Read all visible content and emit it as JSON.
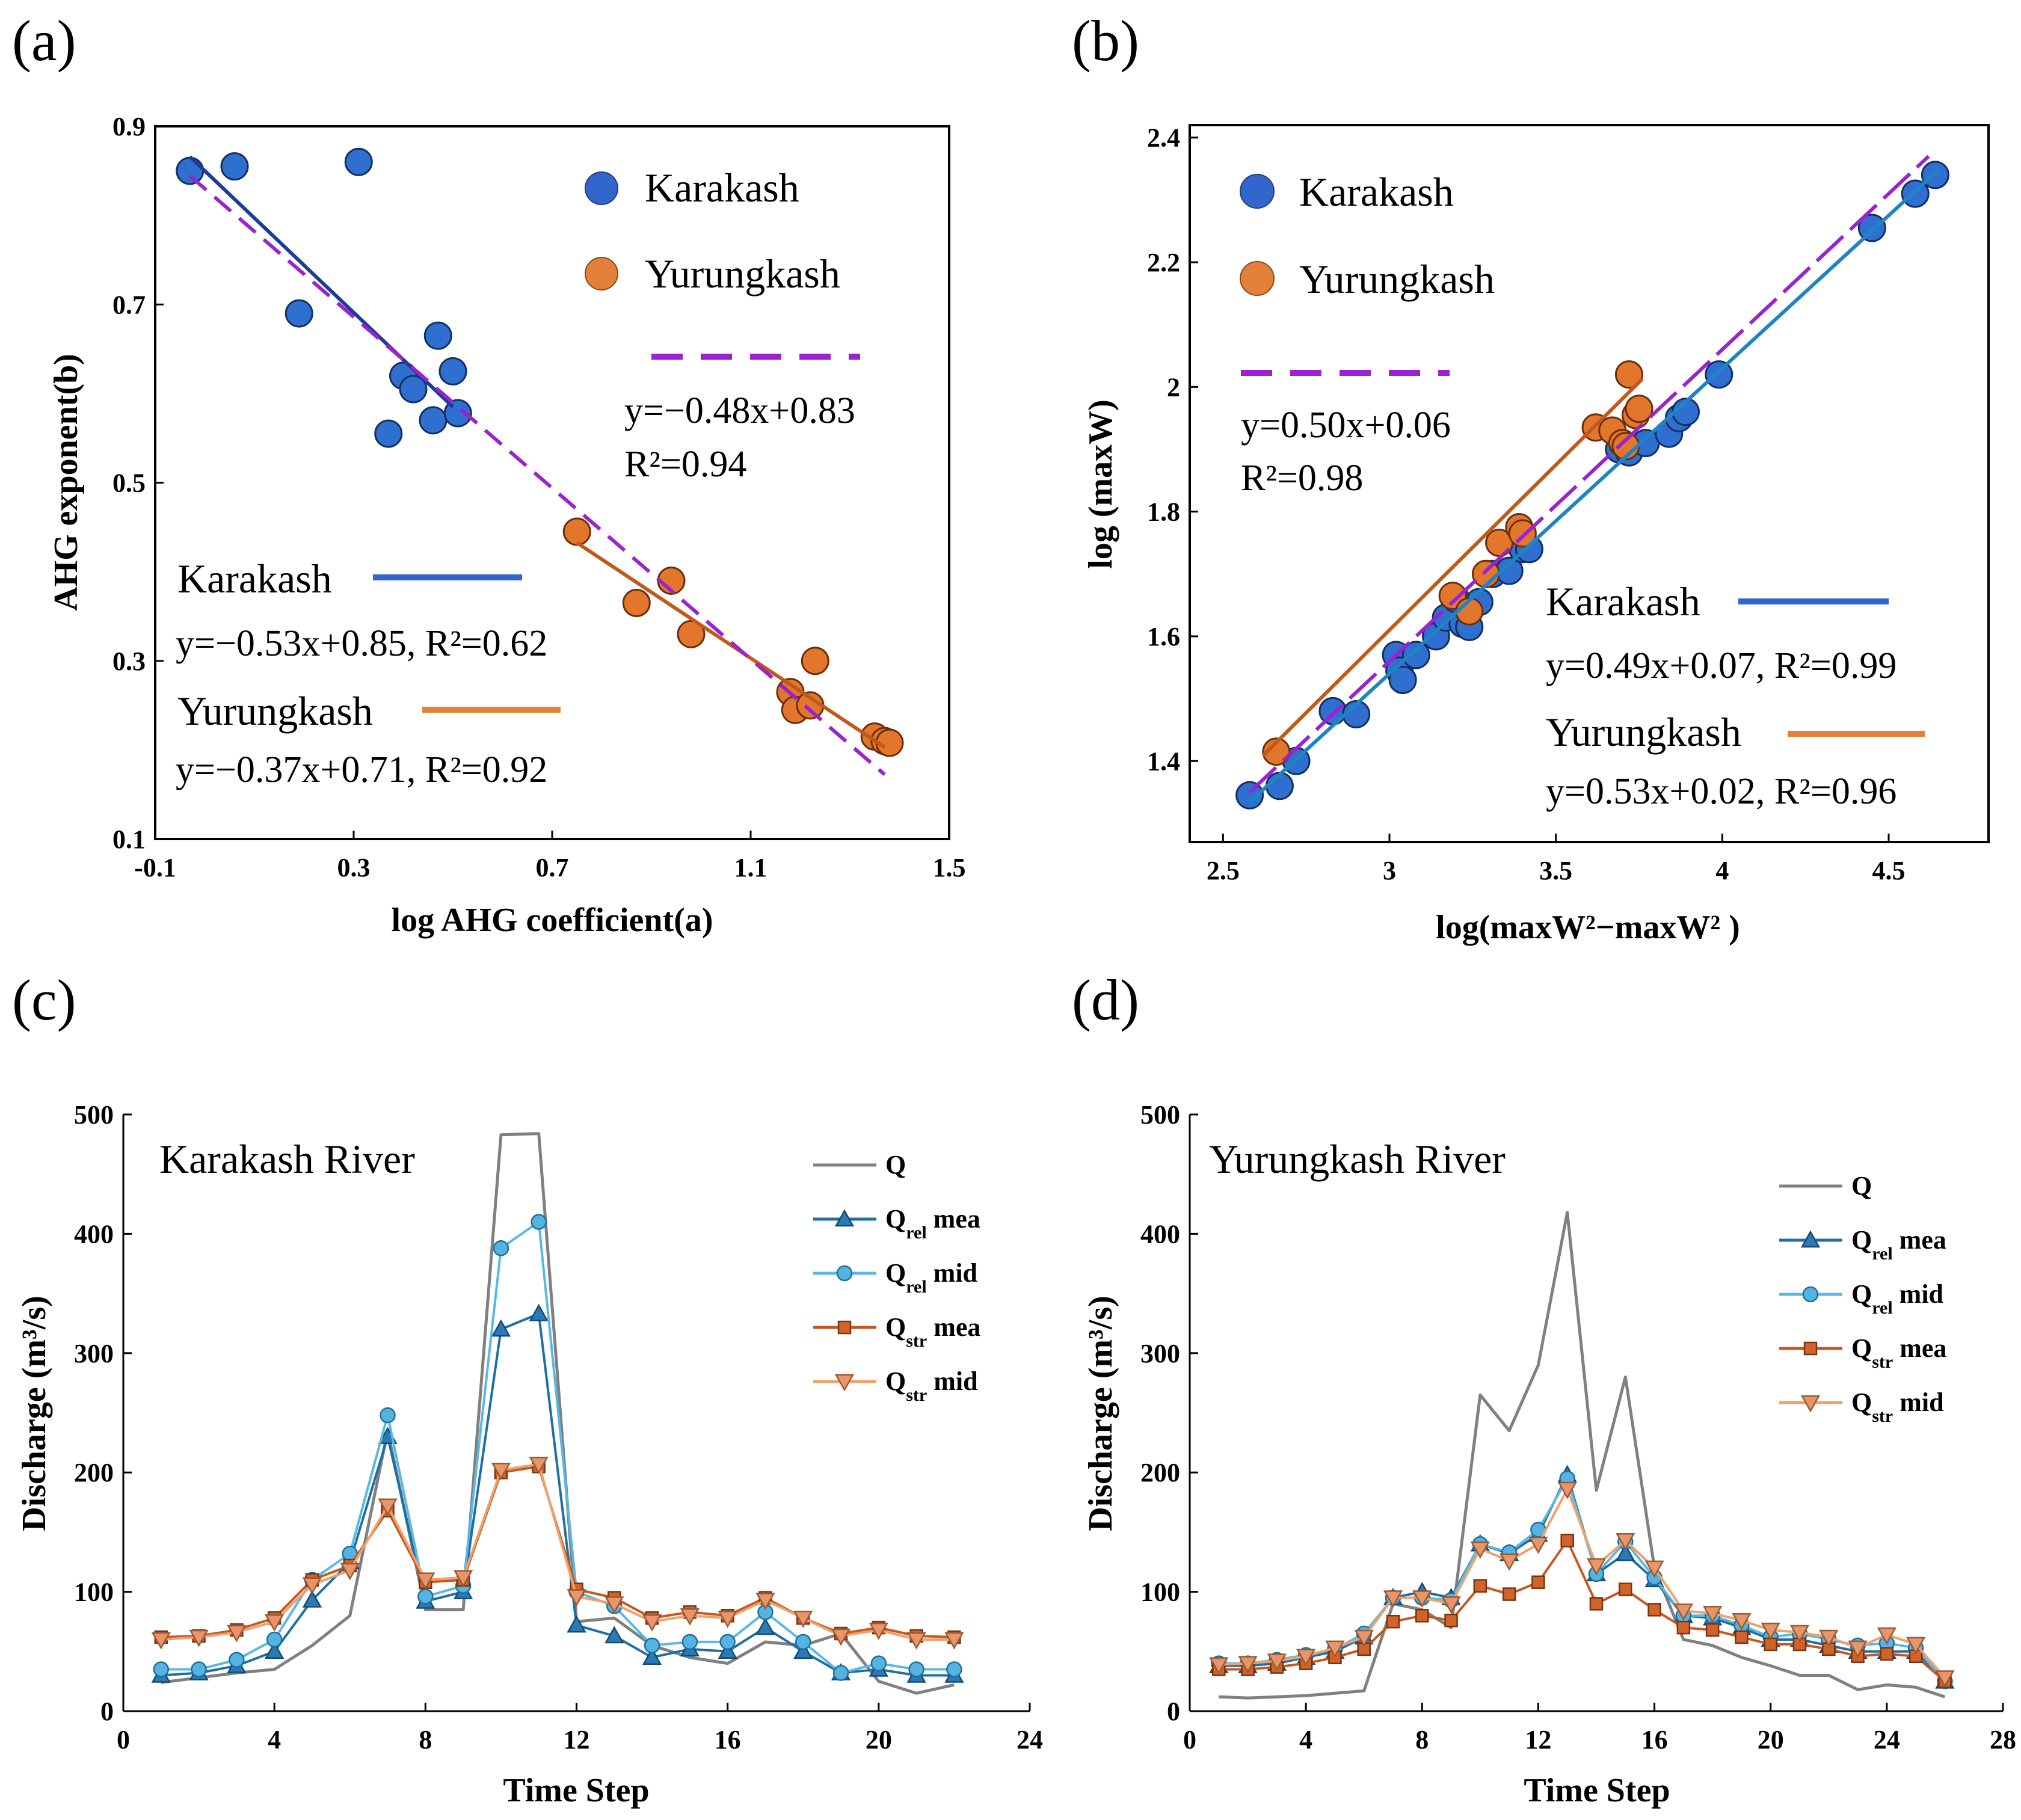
{
  "colors": {
    "karakash_dot": "#2f6fd0",
    "karakash_fit_a": "#1e3a9a",
    "karakash_fit_b": "#1f84c4",
    "yurungkash_dot": "#e2762c",
    "yurungkash_fit": "#c1581c",
    "pooled_fit": "#9a22cf",
    "legend_blue": "#3366cc",
    "legend_orange": "#e38039",
    "q": "#808080",
    "rel_mea": "#1f6fa6",
    "rel_mid": "#5ab8e4",
    "str_mea": "#c8561f",
    "str_mid": "#f0a06a"
  },
  "chart_data": [
    {
      "panel": "(a)",
      "type": "scatter",
      "xlabel": "log AHG coefficient(a)",
      "ylabel": "AHG exponent(b)",
      "xlim": [
        -0.1,
        1.5
      ],
      "ylim": [
        0.1,
        0.9
      ],
      "xticks": [
        "-0.1",
        "0.3",
        "0.7",
        "1.1",
        "1.5"
      ],
      "yticks": [
        "0.1",
        "0.3",
        "0.5",
        "0.7",
        "0.9"
      ],
      "legend": [
        "Karakash",
        "Yurungkash"
      ],
      "pooled": {
        "eq": "y=−0.48x+0.83",
        "r2": "R²=0.94",
        "slope": -0.48,
        "intercept": 0.83,
        "x_range": [
          -0.03,
          1.37
        ]
      },
      "series": [
        {
          "name": "Karakash",
          "label": "Karakash",
          "eq": "y=−0.53x+0.85, R²=0.62",
          "slope": -0.53,
          "intercept": 0.85,
          "x_range": [
            -0.03,
            0.5
          ],
          "points": [
            [
              -0.03,
              0.85
            ],
            [
              0.06,
              0.855
            ],
            [
              0.31,
              0.86
            ],
            [
              0.19,
              0.69
            ],
            [
              0.4,
              0.62
            ],
            [
              0.42,
              0.605
            ],
            [
              0.37,
              0.555
            ],
            [
              0.46,
              0.57
            ],
            [
              0.47,
              0.665
            ],
            [
              0.5,
              0.625
            ],
            [
              0.51,
              0.578
            ]
          ]
        },
        {
          "name": "Yurungkash",
          "label": "Yurungkash",
          "eq": "y=−0.37x+0.71, R²=0.92",
          "slope": -0.37,
          "intercept": 0.71,
          "x_range": [
            0.75,
            1.37
          ],
          "points": [
            [
              0.75,
              0.445
            ],
            [
              0.87,
              0.365
            ],
            [
              0.94,
              0.39
            ],
            [
              0.98,
              0.33
            ],
            [
              1.18,
              0.265
            ],
            [
              1.19,
              0.245
            ],
            [
              1.22,
              0.25
            ],
            [
              1.23,
              0.3
            ],
            [
              1.35,
              0.215
            ],
            [
              1.37,
              0.21
            ],
            [
              1.38,
              0.208
            ]
          ]
        }
      ]
    },
    {
      "panel": "(b)",
      "type": "scatter",
      "xlabel": "log(maxW²−maxW² )",
      "ylabel": "log (maxW)",
      "xlim": [
        2.4,
        4.8
      ],
      "ylim": [
        1.27,
        2.42
      ],
      "xticks": [
        "2.5",
        "3",
        "3.5",
        "4",
        "4.5"
      ],
      "yticks": [
        "1.4",
        "1.6",
        "1.8",
        "2",
        "2.2",
        "2.4"
      ],
      "legend": [
        "Karakash",
        "Yurungkash"
      ],
      "pooled": {
        "eq": "y=0.50x+0.06",
        "r2": "R²=0.98",
        "slope": 0.5,
        "intercept": 0.06,
        "x_range": [
          2.58,
          4.62
        ]
      },
      "series": [
        {
          "name": "Karakash",
          "label": "Karakash",
          "eq": "y=0.49x+0.07, R²=0.99",
          "slope": 0.49,
          "intercept": 0.07,
          "x_range": [
            2.58,
            4.65
          ],
          "points": [
            [
              2.58,
              1.345
            ],
            [
              2.67,
              1.36
            ],
            [
              2.72,
              1.4
            ],
            [
              2.83,
              1.48
            ],
            [
              2.9,
              1.475
            ],
            [
              3.02,
              1.57
            ],
            [
              3.03,
              1.545
            ],
            [
              3.04,
              1.53
            ],
            [
              3.08,
              1.57
            ],
            [
              3.14,
              1.6
            ],
            [
              3.17,
              1.63
            ],
            [
              3.2,
              1.66
            ],
            [
              3.22,
              1.62
            ],
            [
              3.24,
              1.615
            ],
            [
              3.27,
              1.655
            ],
            [
              3.31,
              1.7
            ],
            [
              3.36,
              1.705
            ],
            [
              3.4,
              1.74
            ],
            [
              3.42,
              1.74
            ],
            [
              3.69,
              1.9
            ],
            [
              3.72,
              1.895
            ],
            [
              3.77,
              1.91
            ],
            [
              3.84,
              1.925
            ],
            [
              3.87,
              1.95
            ],
            [
              3.89,
              1.96
            ],
            [
              3.99,
              2.02
            ],
            [
              4.45,
              2.255
            ],
            [
              4.58,
              2.31
            ],
            [
              4.64,
              2.34
            ]
          ]
        },
        {
          "name": "Yurungkash",
          "label": "Yurungkash",
          "eq": "y=0.53x+0.02, R²=0.96",
          "slope": 0.53,
          "intercept": 0.02,
          "x_range": [
            2.62,
            3.76
          ],
          "points": [
            [
              2.66,
              1.415
            ],
            [
              3.19,
              1.665
            ],
            [
              3.24,
              1.64
            ],
            [
              3.29,
              1.7
            ],
            [
              3.33,
              1.75
            ],
            [
              3.39,
              1.775
            ],
            [
              3.4,
              1.765
            ],
            [
              3.62,
              1.935
            ],
            [
              3.67,
              1.93
            ],
            [
              3.7,
              1.91
            ],
            [
              3.71,
              1.905
            ],
            [
              3.72,
              2.02
            ],
            [
              3.74,
              1.955
            ],
            [
              3.75,
              1.965
            ]
          ]
        }
      ]
    },
    {
      "panel": "(c)",
      "type": "line",
      "title": "Karakash River",
      "xlabel": "Time Step",
      "ylabel": "Discharge (m³/s)",
      "xlim": [
        0,
        24
      ],
      "ylim": [
        0,
        500
      ],
      "xticks": [
        "0",
        "4",
        "8",
        "12",
        "16",
        "20",
        "24"
      ],
      "yticks": [
        "0",
        "100",
        "200",
        "300",
        "400",
        "500"
      ],
      "x": [
        1,
        2,
        3,
        4,
        5,
        6,
        7,
        8,
        9,
        10,
        11,
        12,
        13,
        14,
        15,
        16,
        17,
        18,
        19,
        20,
        21,
        22
      ],
      "series": [
        {
          "name": "Q",
          "values": [
            24,
            28,
            32,
            35,
            55,
            80,
            235,
            85,
            85,
            483,
            484,
            75,
            78,
            55,
            45,
            40,
            58,
            55,
            65,
            25,
            15,
            22
          ]
        },
        {
          "name": "Q_rel mea",
          "values": [
            30,
            32,
            38,
            50,
            93,
            125,
            230,
            92,
            100,
            320,
            333,
            72,
            63,
            45,
            52,
            50,
            70,
            50,
            32,
            35,
            30,
            30
          ]
        },
        {
          "name": "Q_rel mid",
          "values": [
            35,
            35,
            43,
            60,
            110,
            132,
            248,
            96,
            105,
            388,
            410,
            100,
            88,
            55,
            58,
            58,
            83,
            58,
            32,
            40,
            35,
            35
          ]
        },
        {
          "name": "Q_str mea",
          "values": [
            62,
            63,
            68,
            78,
            110,
            122,
            168,
            108,
            110,
            200,
            205,
            102,
            95,
            78,
            83,
            80,
            95,
            78,
            65,
            70,
            63,
            62
          ]
        },
        {
          "name": "Q_str mid",
          "values": [
            60,
            62,
            66,
            75,
            106,
            118,
            172,
            110,
            112,
            202,
            207,
            96,
            90,
            75,
            80,
            78,
            93,
            78,
            63,
            68,
            60,
            60
          ]
        }
      ],
      "legend": [
        {
          "base": "Q",
          "sub": "",
          "tail": ""
        },
        {
          "base": "Q",
          "sub": "rel",
          "tail": " mea"
        },
        {
          "base": "Q",
          "sub": "rel",
          "tail": " mid"
        },
        {
          "base": "Q",
          "sub": "str",
          "tail": " mea"
        },
        {
          "base": "Q",
          "sub": "str",
          "tail": " mid"
        }
      ]
    },
    {
      "panel": "(d)",
      "type": "line",
      "title": "Yurungkash River",
      "xlabel": "Time Step",
      "ylabel": "Discharge (m³/s)",
      "xlim": [
        0,
        28
      ],
      "ylim": [
        0,
        500
      ],
      "xticks": [
        "0",
        "4",
        "8",
        "12",
        "16",
        "20",
        "24",
        "28"
      ],
      "yticks": [
        "0",
        "100",
        "200",
        "300",
        "400",
        "500"
      ],
      "x": [
        1,
        2,
        3,
        4,
        5,
        6,
        7,
        8,
        9,
        10,
        11,
        12,
        13,
        14,
        15,
        16,
        17,
        18,
        19,
        20,
        21,
        22,
        23,
        24,
        25,
        26
      ],
      "series": [
        {
          "name": "Q",
          "values": [
            12,
            11,
            12,
            13,
            15,
            17,
            90,
            85,
            70,
            265,
            235,
            290,
            418,
            185,
            280,
            120,
            60,
            55,
            45,
            38,
            30,
            30,
            18,
            22,
            20,
            12
          ]
        },
        {
          "name": "Q_rel mea",
          "values": [
            38,
            38,
            40,
            45,
            50,
            62,
            95,
            100,
            95,
            140,
            132,
            148,
            198,
            115,
            132,
            110,
            80,
            78,
            70,
            60,
            60,
            55,
            50,
            50,
            50,
            25
          ]
        },
        {
          "name": "Q_rel mid",
          "values": [
            40,
            40,
            43,
            47,
            52,
            65,
            95,
            95,
            93,
            140,
            133,
            152,
            195,
            115,
            142,
            112,
            80,
            80,
            72,
            62,
            65,
            60,
            55,
            57,
            53,
            25
          ]
        },
        {
          "name": "Q_str mea",
          "values": [
            35,
            35,
            37,
            40,
            45,
            52,
            75,
            80,
            76,
            105,
            98,
            108,
            143,
            90,
            102,
            85,
            70,
            68,
            62,
            56,
            56,
            52,
            46,
            48,
            46,
            25
          ]
        },
        {
          "name": "Q_str mid",
          "values": [
            39,
            40,
            42,
            46,
            53,
            62,
            95,
            95,
            90,
            136,
            126,
            140,
            186,
            122,
            143,
            120,
            84,
            82,
            76,
            68,
            66,
            62,
            53,
            64,
            56,
            28
          ]
        }
      ],
      "legend": [
        {
          "base": "Q",
          "sub": "",
          "tail": ""
        },
        {
          "base": "Q",
          "sub": "rel",
          "tail": " mea"
        },
        {
          "base": "Q",
          "sub": "rel",
          "tail": " mid"
        },
        {
          "base": "Q",
          "sub": "str",
          "tail": " mea"
        },
        {
          "base": "Q",
          "sub": "str",
          "tail": " mid"
        }
      ]
    }
  ]
}
